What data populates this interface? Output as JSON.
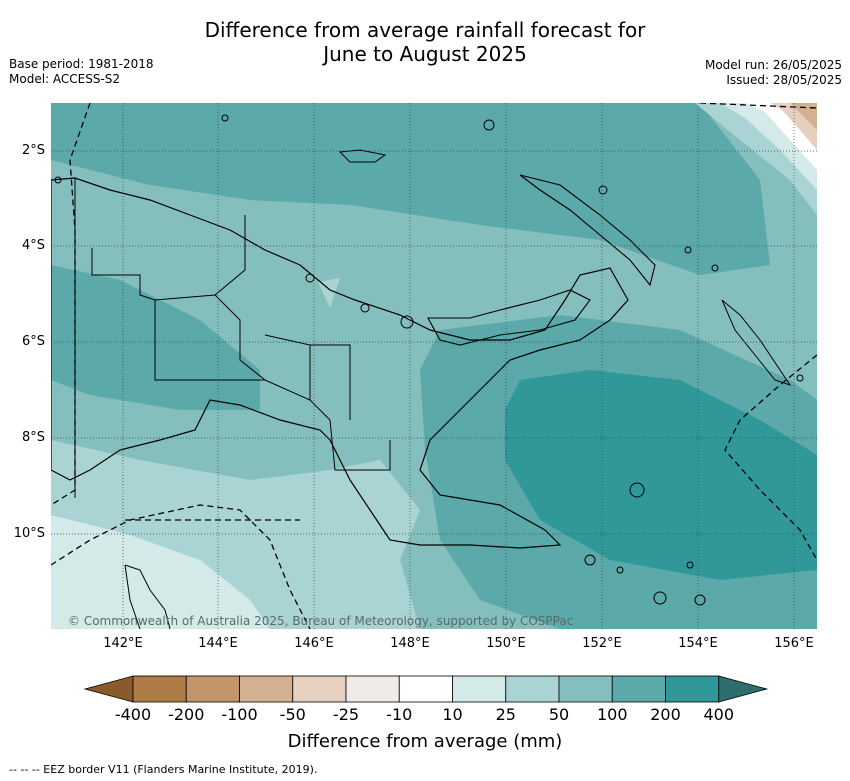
{
  "title_line1": "Difference from average rainfall forecast for",
  "title_line2": "June to August 2025",
  "base_period": "Base period: 1981-2018",
  "model": "Model: ACCESS-S2",
  "model_run": "Model run: 26/05/2025",
  "issued": "Issued: 28/05/2025",
  "map": {
    "lat_labels": [
      "2°S",
      "4°S",
      "6°S",
      "8°S",
      "10°S"
    ],
    "lon_labels": [
      "142°E",
      "144°E",
      "146°E",
      "148°E",
      "150°E",
      "152°E",
      "154°E",
      "156°E"
    ],
    "copyright": "© Commonwealth of Australia 2025, Bureau of Meteorology, supported by COSPPac"
  },
  "colorbar": {
    "ticks": [
      "-400",
      "-200",
      "-100",
      "-50",
      "-25",
      "-10",
      "10",
      "25",
      "50",
      "100",
      "200",
      "400"
    ],
    "colors": [
      "#8b5a2b",
      "#ad7b43",
      "#c4946b",
      "#d4b093",
      "#e6d1c0",
      "#f0ebe8",
      "#ffffff",
      "#d4eae9",
      "#aad4d3",
      "#84bfbe",
      "#5ba9a9",
      "#309898",
      "#2b6e6b"
    ],
    "title": "Difference from average (mm)"
  },
  "footnote": "--  --  -- EEZ border V11 (Flanders Marine Institute, 2019)."
}
